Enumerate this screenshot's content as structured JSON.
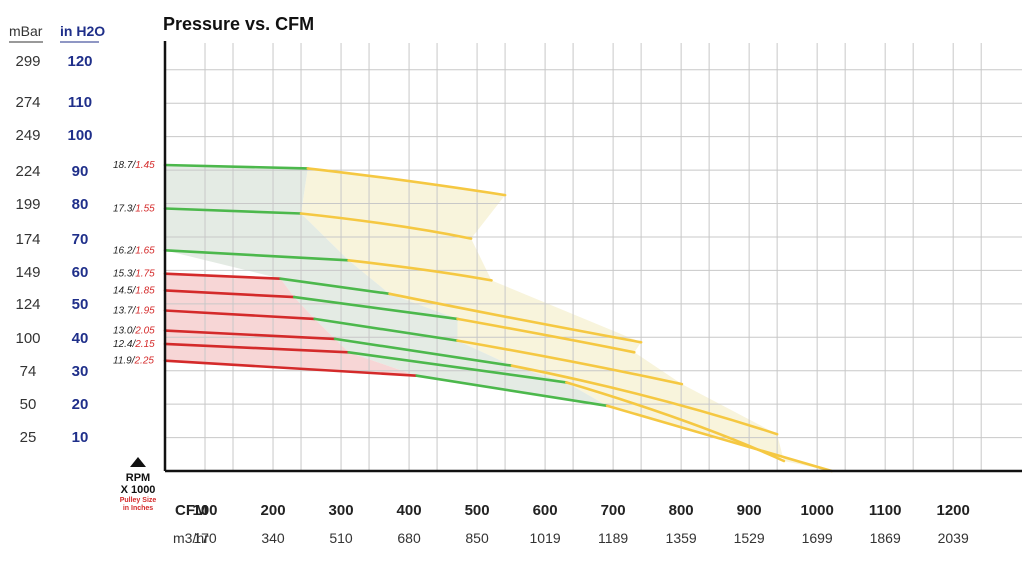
{
  "chart_data": {
    "type": "line",
    "title": "Pressure vs. CFM",
    "y_headers": {
      "left": "mBar",
      "right": "in H2O"
    },
    "y_ticks": [
      {
        "mbar": "299",
        "inh2o": "120"
      },
      {
        "mbar": "274",
        "inh2o": "110"
      },
      {
        "mbar": "249",
        "inh2o": "100"
      },
      {
        "mbar": "224",
        "inh2o": "90"
      },
      {
        "mbar": "199",
        "inh2o": "80"
      },
      {
        "mbar": "174",
        "inh2o": "70"
      },
      {
        "mbar": "149",
        "inh2o": "60"
      },
      {
        "mbar": "124",
        "inh2o": "50"
      },
      {
        "mbar": "100",
        "inh2o": "40"
      },
      {
        "mbar": "74",
        "inh2o": "30"
      },
      {
        "mbar": "50",
        "inh2o": "20"
      },
      {
        "mbar": "25",
        "inh2o": "10"
      }
    ],
    "x_headers": {
      "cfm": "CFM",
      "m3hr": "m3/hr"
    },
    "x_ticks": [
      {
        "cfm": "100",
        "m3hr": "170"
      },
      {
        "cfm": "200",
        "m3hr": "340"
      },
      {
        "cfm": "300",
        "m3hr": "510"
      },
      {
        "cfm": "400",
        "m3hr": "680"
      },
      {
        "cfm": "500",
        "m3hr": "850"
      },
      {
        "cfm": "600",
        "m3hr": "1019"
      },
      {
        "cfm": "700",
        "m3hr": "1189"
      },
      {
        "cfm": "800",
        "m3hr": "1359"
      },
      {
        "cfm": "900",
        "m3hr": "1529"
      },
      {
        "cfm": "1000",
        "m3hr": "1699"
      },
      {
        "cfm": "1100",
        "m3hr": "1869"
      },
      {
        "cfm": "1200",
        "m3hr": "2039"
      }
    ],
    "xlim": [
      0,
      1260
    ],
    "ylim": [
      0,
      128
    ],
    "legend_note": {
      "rpm": "RPM",
      "x1000": "X 1000",
      "pulley1": "Pulley Size",
      "pulley2": "in Inches"
    },
    "colors": {
      "red": "#d42a2a",
      "green": "#4cb84c",
      "yellow": "#f5c842",
      "zone_red": "#f7d6d6",
      "zone_green": "#e4ebe4",
      "zone_yellow": "#f8f4dc"
    },
    "series": [
      {
        "rpm": "18.7",
        "pulley": "1.45",
        "segments": [
          {
            "color": "green",
            "points": [
              [
                0,
                91.5
              ],
              [
                210,
                90.5
              ]
            ]
          },
          {
            "color": "yellow",
            "points": [
              [
                210,
                90.5
              ],
              [
                340,
                87.5
              ],
              [
                500,
                82.5
              ]
            ]
          }
        ]
      },
      {
        "rpm": "17.3",
        "pulley": "1.55",
        "segments": [
          {
            "color": "green",
            "points": [
              [
                0,
                78.5
              ],
              [
                200,
                77
              ]
            ]
          },
          {
            "color": "yellow",
            "points": [
              [
                200,
                77
              ],
              [
                340,
                74
              ],
              [
                450,
                69.5
              ]
            ]
          }
        ]
      },
      {
        "rpm": "16.2",
        "pulley": "1.65",
        "segments": [
          {
            "color": "green",
            "points": [
              [
                0,
                66
              ],
              [
                270,
                63
              ]
            ]
          },
          {
            "color": "yellow",
            "points": [
              [
                270,
                63
              ],
              [
                400,
                60
              ],
              [
                480,
                57
              ]
            ]
          }
        ]
      },
      {
        "rpm": "15.3",
        "pulley": "1.75",
        "segments": [
          {
            "color": "red",
            "points": [
              [
                0,
                59
              ],
              [
                170,
                57.5
              ]
            ]
          },
          {
            "color": "green",
            "points": [
              [
                170,
                57.5
              ],
              [
                330,
                53
              ]
            ]
          },
          {
            "color": "yellow",
            "points": [
              [
                330,
                53
              ],
              [
                500,
                46
              ],
              [
                700,
                38.5
              ]
            ]
          }
        ]
      },
      {
        "rpm": "14.5",
        "pulley": "1.85",
        "segments": [
          {
            "color": "red",
            "points": [
              [
                0,
                54
              ],
              [
                190,
                52
              ]
            ]
          },
          {
            "color": "green",
            "points": [
              [
                190,
                52
              ],
              [
                430,
                45.5
              ]
            ]
          },
          {
            "color": "yellow",
            "points": [
              [
                430,
                45.5
              ],
              [
                580,
                40
              ],
              [
                690,
                35.5
              ]
            ]
          }
        ]
      },
      {
        "rpm": "13.7",
        "pulley": "1.95",
        "segments": [
          {
            "color": "red",
            "points": [
              [
                0,
                48
              ],
              [
                220,
                45.5
              ]
            ]
          },
          {
            "color": "green",
            "points": [
              [
                220,
                45.5
              ],
              [
                430,
                39
              ]
            ]
          },
          {
            "color": "yellow",
            "points": [
              [
                430,
                39
              ],
              [
                600,
                33
              ],
              [
                760,
                26
              ]
            ]
          }
        ]
      },
      {
        "rpm": "13.0",
        "pulley": "2.05",
        "segments": [
          {
            "color": "red",
            "points": [
              [
                0,
                42
              ],
              [
                250,
                39.5
              ]
            ]
          },
          {
            "color": "green",
            "points": [
              [
                250,
                39.5
              ],
              [
                510,
                31.5
              ]
            ]
          },
          {
            "color": "yellow",
            "points": [
              [
                510,
                31.5
              ],
              [
                720,
                23
              ],
              [
                900,
                11
              ]
            ]
          }
        ]
      },
      {
        "rpm": "12.4",
        "pulley": "2.15",
        "segments": [
          {
            "color": "red",
            "points": [
              [
                0,
                38
              ],
              [
                270,
                35.5
              ]
            ]
          },
          {
            "color": "green",
            "points": [
              [
                270,
                35.5
              ],
              [
                590,
                26.5
              ]
            ]
          },
          {
            "color": "yellow",
            "points": [
              [
                590,
                26.5
              ],
              [
                780,
                15
              ],
              [
                910,
                3
              ]
            ]
          }
        ]
      },
      {
        "rpm": "11.9",
        "pulley": "2.25",
        "segments": [
          {
            "color": "red",
            "points": [
              [
                0,
                33
              ],
              [
                370,
                28.5
              ]
            ]
          },
          {
            "color": "green",
            "points": [
              [
                370,
                28.5
              ],
              [
                650,
                19.5
              ]
            ]
          },
          {
            "color": "yellow",
            "points": [
              [
                650,
                19.5
              ],
              [
                860,
                7
              ],
              [
                980,
                0
              ]
            ]
          }
        ]
      }
    ]
  }
}
